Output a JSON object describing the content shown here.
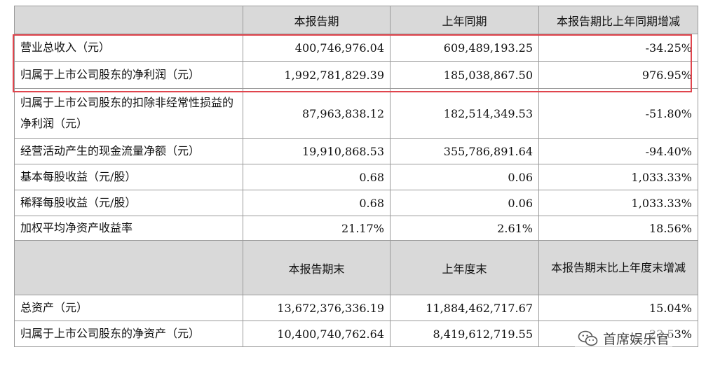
{
  "table": {
    "header1": [
      "本报告期",
      "上年同期",
      "本报告期比上年同期增减"
    ],
    "rows1": [
      {
        "label": "营业总收入（元）",
        "current": "400,746,976.04",
        "prior": "609,489,193.25",
        "change": "-34.25%"
      },
      {
        "label": "归属于上市公司股东的净利润（元）",
        "current": "1,992,781,829.39",
        "prior": "185,038,867.50",
        "change": "976.95%"
      },
      {
        "label": "归属于上市公司股东的扣除非经常性损益的净利润（元）",
        "current": "87,963,838.12",
        "prior": "182,514,349.53",
        "change": "-51.80%"
      },
      {
        "label": "经营活动产生的现金流量净额（元）",
        "current": "19,910,868.53",
        "prior": "355,786,891.64",
        "change": "-94.40%"
      },
      {
        "label": "基本每股收益（元/股）",
        "current": "0.68",
        "prior": "0.06",
        "change": "1,033.33%"
      },
      {
        "label": "稀释每股收益（元/股）",
        "current": "0.68",
        "prior": "0.06",
        "change": "1,033.33%"
      },
      {
        "label": "加权平均净资产收益率",
        "current": "21.17%",
        "prior": "2.61%",
        "change": "18.56%"
      }
    ],
    "header2": [
      "本报告期末",
      "上年度末",
      "本报告期末比上年度末增减"
    ],
    "rows2": [
      {
        "label": "总资产（元）",
        "current": "13,672,376,336.19",
        "prior": "11,884,462,717.67",
        "change": "15.04%"
      },
      {
        "label": "归属于上市公司股东的净资产（元）",
        "current": "10,400,740,762.64",
        "prior": "8,419,612,719.55",
        "change": "23.53%"
      }
    ]
  },
  "highlight_color": "#e0454d",
  "watermark": {
    "icon": "wechat-icon",
    "text": "首席娱乐官"
  }
}
